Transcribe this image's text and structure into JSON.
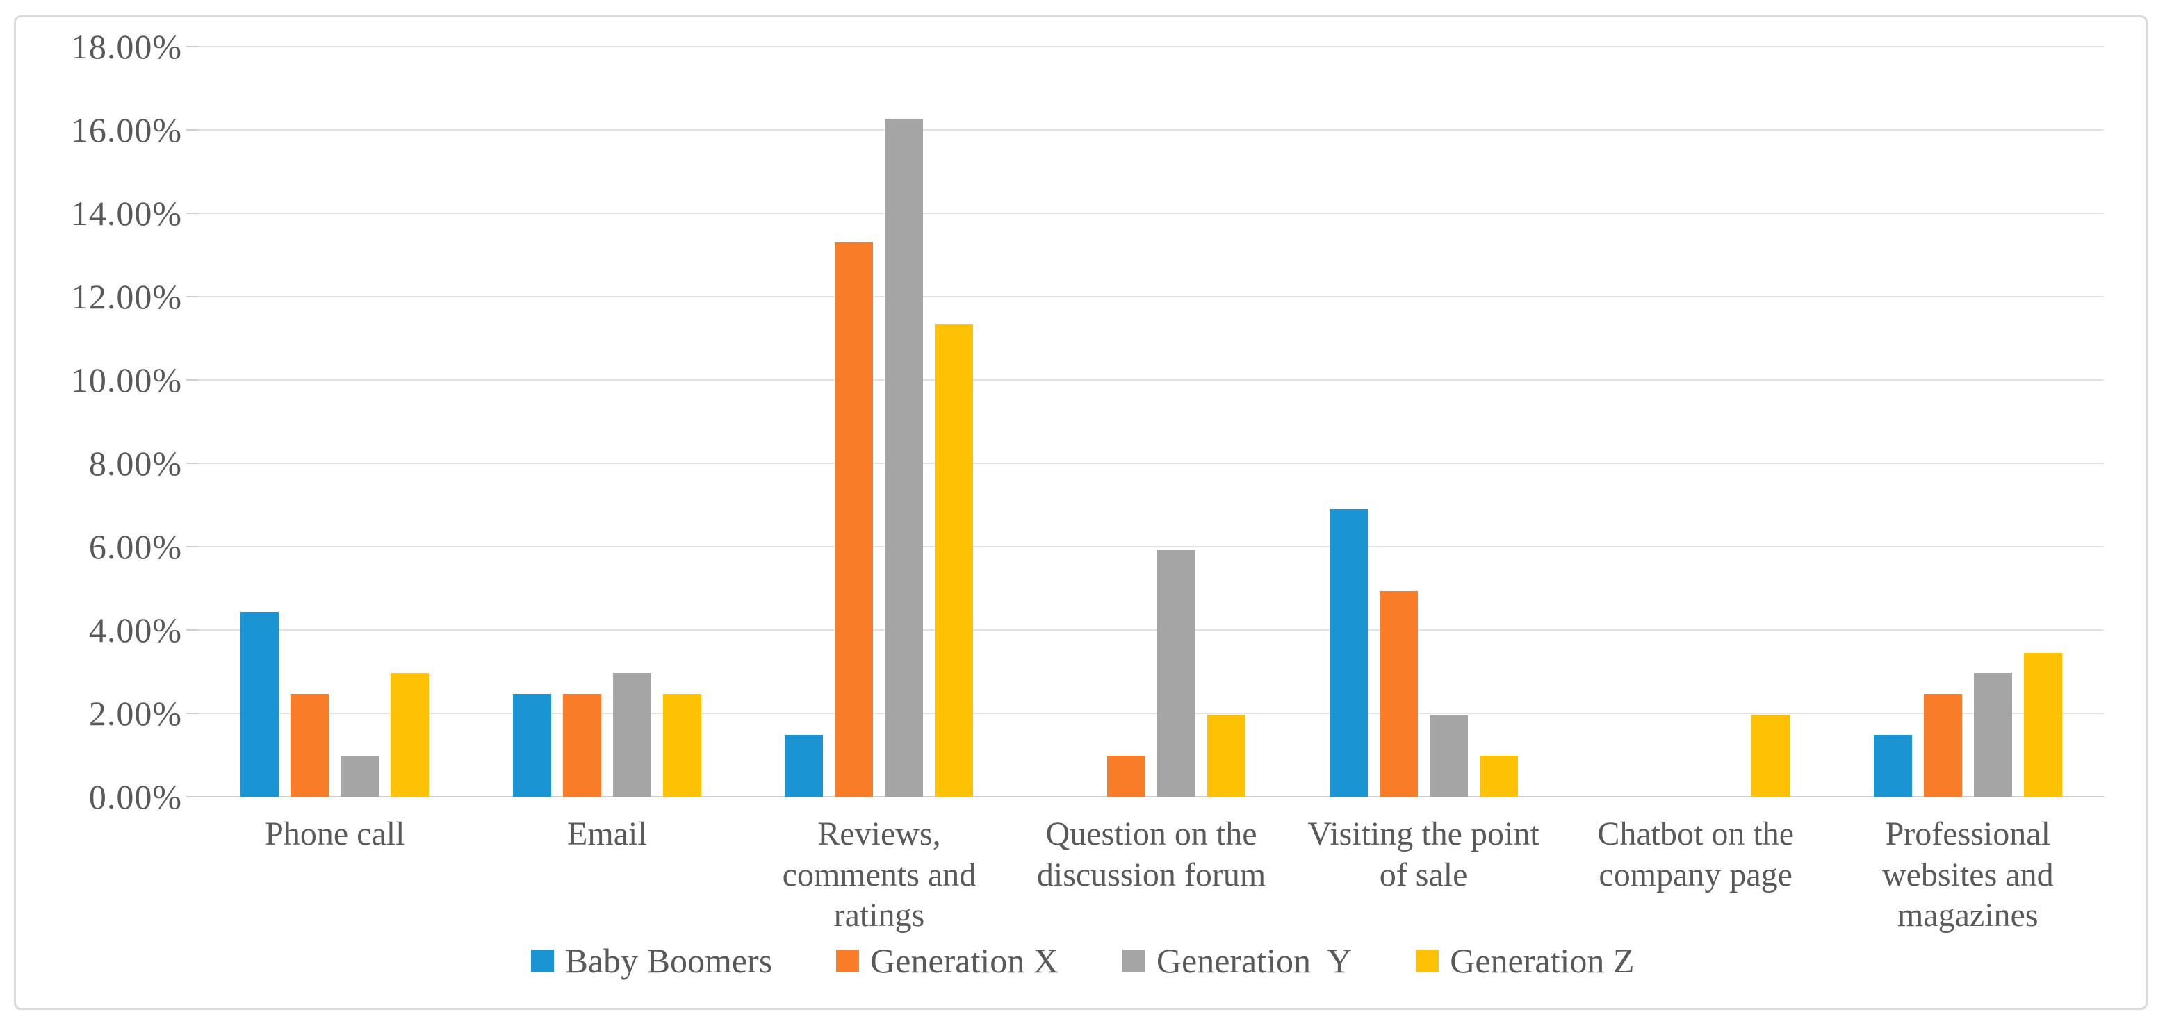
{
  "figure": {
    "background": "#FFFFFF",
    "border_color": "#D9D9D9",
    "gridline_color": "#E2E2E2",
    "text_color": "#595959"
  },
  "chart_data": {
    "type": "bar",
    "title": "",
    "xlabel": "",
    "ylabel": "",
    "categories": [
      "Phone call",
      "Email",
      "Reviews, comments and ratings",
      "Question on the discussion forum",
      "Visiting the point of sale",
      "Chatbot on the company page",
      "Professional websites and magazines"
    ],
    "series": [
      {
        "name": "Baby Boomers",
        "color": "#1B94D4",
        "values": [
          4.43,
          2.46,
          1.48,
          0.0,
          6.9,
          0.0,
          1.48
        ]
      },
      {
        "name": "Generation X",
        "color": "#F97D28",
        "values": [
          2.46,
          2.46,
          13.3,
          0.99,
          4.93,
          0.0,
          2.46
        ]
      },
      {
        "name": "Generation  Y",
        "color": "#A5A5A5",
        "values": [
          0.99,
          2.96,
          16.26,
          5.91,
          1.97,
          0.0,
          2.96
        ]
      },
      {
        "name": "Generation Z",
        "color": "#FFC104",
        "values": [
          2.96,
          2.46,
          11.33,
          1.97,
          0.99,
          1.97,
          3.45
        ]
      }
    ],
    "y_axis": {
      "min": 0,
      "max": 18,
      "step": 2,
      "unit": "%",
      "tick_labels": [
        "18.00%",
        "16.00%",
        "14.00%",
        "12.00%",
        "10.00%",
        "8.00%",
        "6.00%",
        "4.00%",
        "2.00%",
        "0.00%"
      ]
    },
    "grid": true,
    "legend_position": "bottom"
  }
}
